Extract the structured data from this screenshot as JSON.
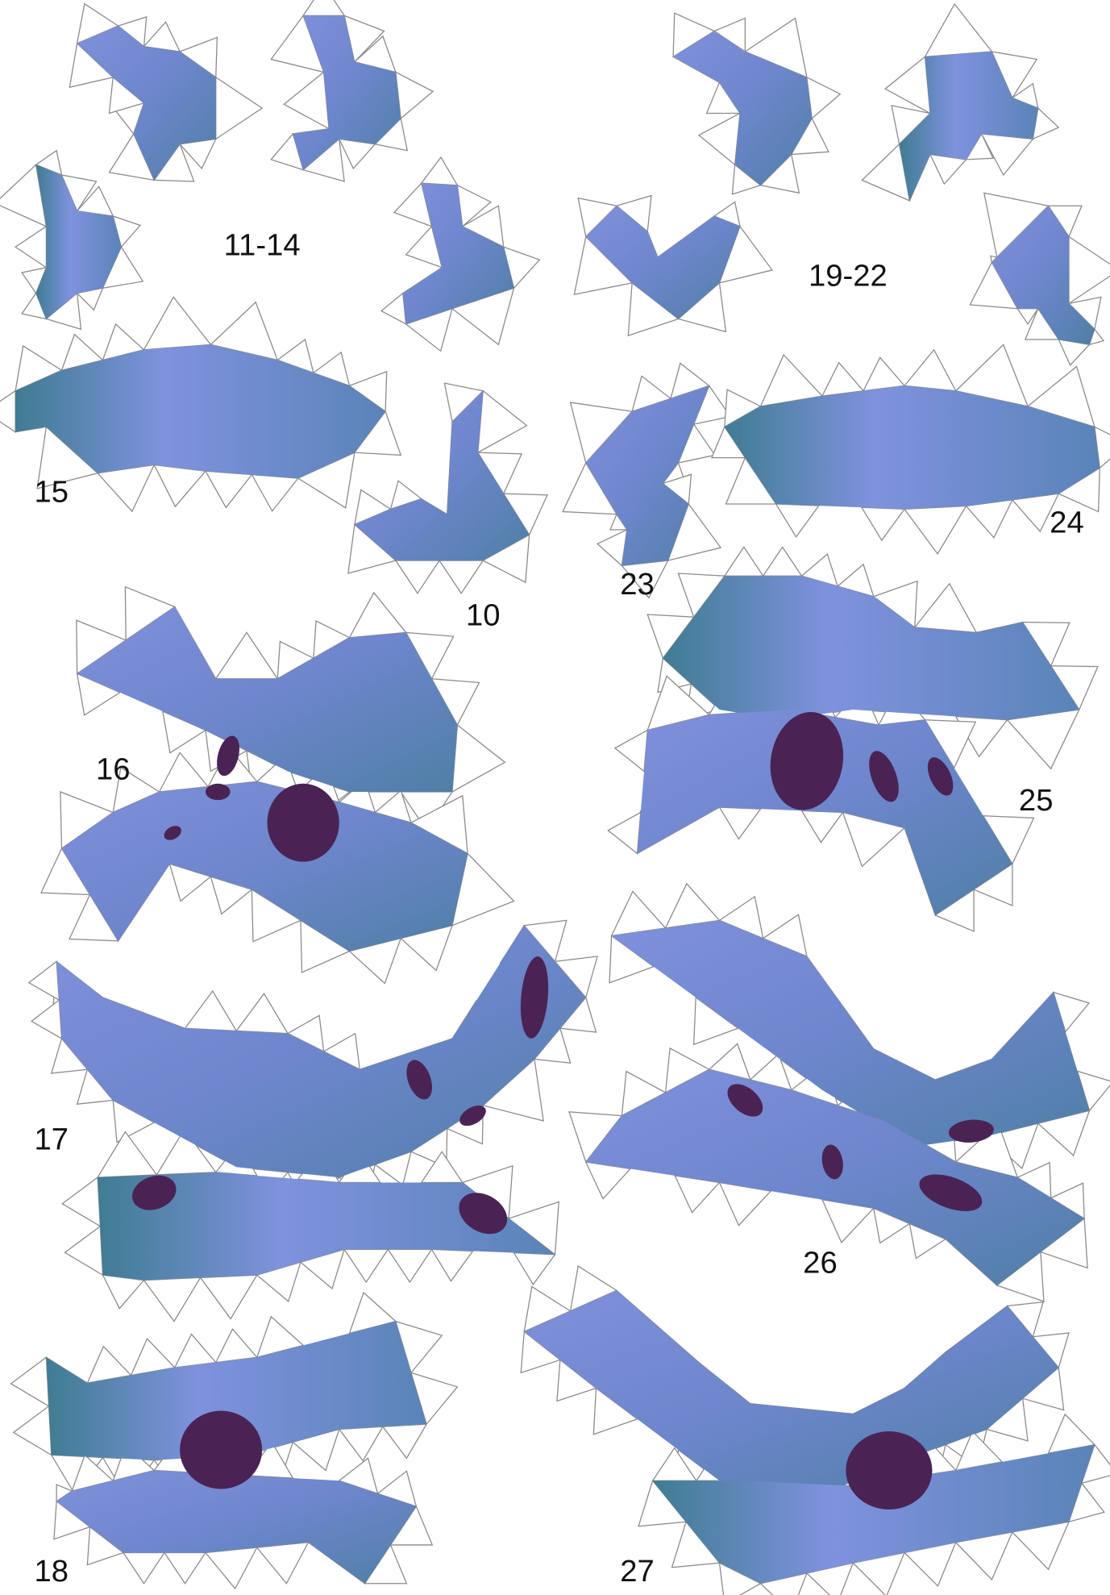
{
  "labels": [
    "11-14",
    "19-22",
    "15",
    "10",
    "23",
    "24",
    "16",
    "25",
    "17",
    "26",
    "18",
    "27"
  ]
}
